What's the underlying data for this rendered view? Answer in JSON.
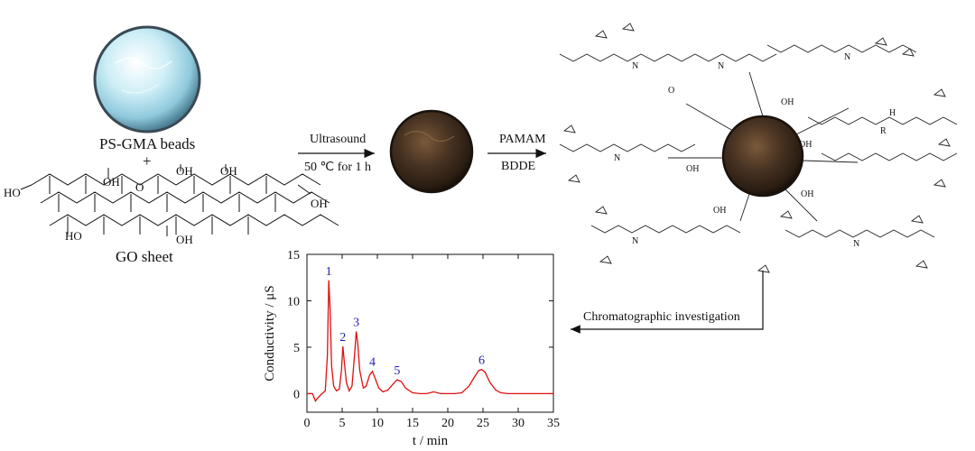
{
  "labels": {
    "ps_gma": "PS-GMA beads",
    "plus": "+",
    "go_sheet": "GO sheet",
    "step1_top": "Ultrasound",
    "step1_bottom": "50 ℃ for 1 h",
    "step2_top": "PAMAM",
    "step2_bottom": "BDDE",
    "step3": "Chromatographic investigation"
  },
  "go_groups": {
    "oh": "OH",
    "o": "O",
    "ho": "HO",
    "cooh": "OH"
  },
  "pamam_atoms": {
    "n": "N",
    "r": "R",
    "o": "O",
    "oh": "OH",
    "h": "H"
  },
  "colors": {
    "trace": "#e01010",
    "peak_label": "#1f1fb0",
    "bead_light": "#dff2f7",
    "bead_dark": "#3b2a1c"
  },
  "chart_data": {
    "type": "line",
    "xlabel": "t / min",
    "ylabel": "Conductivity / μS",
    "xlim": [
      0,
      35
    ],
    "ylim": [
      -2,
      15
    ],
    "xticks": [
      0,
      5,
      10,
      15,
      20,
      25,
      30,
      35
    ],
    "yticks": [
      0,
      5,
      10,
      15
    ],
    "series": [
      {
        "x": [
          0.0,
          0.8,
          1.2,
          1.5,
          2.0,
          2.6,
          2.9,
          3.1,
          3.3,
          3.5,
          3.8,
          4.2,
          4.6,
          4.9,
          5.1,
          5.3,
          5.6,
          6.0,
          6.4,
          6.8,
          7.0,
          7.2,
          7.5,
          8.0,
          8.4,
          8.9,
          9.3,
          9.7,
          10.2,
          10.8,
          11.5,
          12.2,
          12.8,
          13.4,
          14.0,
          15.0,
          16.0,
          17.0,
          18.0,
          19.0,
          20.0,
          21.0,
          22.0,
          23.0,
          23.8,
          24.4,
          24.8,
          25.3,
          26.0,
          26.8,
          27.5,
          28.5,
          30.0,
          32.0,
          35.0
        ],
        "y": [
          0.0,
          0.0,
          -0.8,
          -0.5,
          -0.1,
          0.3,
          4.0,
          12.2,
          9.0,
          3.0,
          0.8,
          0.3,
          0.5,
          2.5,
          5.1,
          3.5,
          1.2,
          0.3,
          0.8,
          4.5,
          6.7,
          5.5,
          2.5,
          0.6,
          0.8,
          2.0,
          2.4,
          1.6,
          0.6,
          0.2,
          0.4,
          1.0,
          1.5,
          1.3,
          0.6,
          0.1,
          0.0,
          0.0,
          0.2,
          0.0,
          0.0,
          0.0,
          0.1,
          0.8,
          1.8,
          2.5,
          2.6,
          2.3,
          1.2,
          0.4,
          0.1,
          0.0,
          0.0,
          0.0,
          0.0
        ]
      }
    ],
    "peaks": [
      {
        "label": "1",
        "x": 3.1,
        "y": 12.2
      },
      {
        "label": "2",
        "x": 5.1,
        "y": 5.1
      },
      {
        "label": "3",
        "x": 7.0,
        "y": 6.7
      },
      {
        "label": "4",
        "x": 9.3,
        "y": 2.4
      },
      {
        "label": "5",
        "x": 12.8,
        "y": 1.5
      },
      {
        "label": "6",
        "x": 24.8,
        "y": 2.6
      }
    ]
  }
}
